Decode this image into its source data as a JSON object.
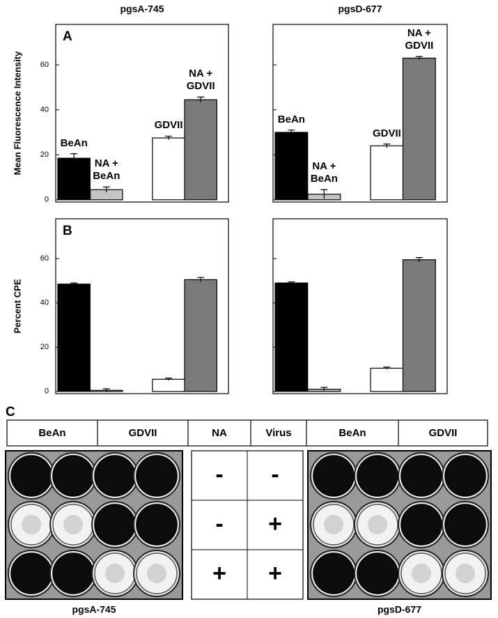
{
  "chart_data": [
    {
      "type": "bar",
      "title": "pgsA-745",
      "panel": "A",
      "y_label": "Mean Fluorescence Intensity",
      "categories": [
        "BeAn",
        "NA + BeAn",
        "GDVII",
        "NA + GDVII"
      ],
      "values": [
        18.5,
        4.5,
        27.5,
        44.5
      ],
      "errors": [
        2,
        1.2,
        0.8,
        1.2
      ],
      "colors": [
        "#000000",
        "#c4c4c4",
        "#ffffff",
        "#7a7a7a"
      ],
      "ylim": [
        -1,
        78
      ],
      "yticks": [
        0,
        20,
        40,
        60
      ],
      "tick_labels": true
    },
    {
      "type": "bar",
      "title": "pgsD-677",
      "categories": [
        "BeAn",
        "NA + BeAn",
        "GDVII",
        "NA + GDVII"
      ],
      "values": [
        30,
        2.5,
        24,
        63
      ],
      "errors": [
        1,
        2,
        0.8,
        0.7
      ],
      "colors": [
        "#000000",
        "#c4c4c4",
        "#ffffff",
        "#7a7a7a"
      ],
      "ylim": [
        -1,
        78
      ],
      "yticks": [
        0,
        20,
        40,
        60
      ],
      "tick_labels": false
    },
    {
      "type": "bar",
      "panel": "B",
      "y_label": "Percent CPE",
      "categories": [
        null,
        null,
        null,
        null
      ],
      "values": [
        48.5,
        0.5,
        5.5,
        50.5
      ],
      "errors": [
        0.5,
        0.7,
        0.5,
        1
      ],
      "colors": [
        "#000000",
        "#c4c4c4",
        "#ffffff",
        "#7a7a7a"
      ],
      "ylim": [
        -1,
        78
      ],
      "yticks": [
        0,
        20,
        40,
        60
      ],
      "tick_labels": true
    },
    {
      "type": "bar",
      "categories": [
        null,
        null,
        null,
        null
      ],
      "values": [
        49,
        1,
        10.5,
        59.5
      ],
      "errors": [
        0.5,
        0.8,
        0.5,
        1
      ],
      "colors": [
        "#000000",
        "#c4c4c4",
        "#ffffff",
        "#7a7a7a"
      ],
      "ylim": [
        -1,
        78
      ],
      "yticks": [
        0,
        20,
        40,
        60
      ],
      "tick_labels": false
    }
  ],
  "panel_c": {
    "label": "C",
    "header": [
      "BeAn",
      "GDVII",
      "NA",
      "Virus",
      "BeAn",
      "GDVII"
    ],
    "signs": [
      [
        "-",
        "-"
      ],
      [
        "-",
        "+"
      ],
      [
        "+",
        "+"
      ]
    ],
    "plate_labels": [
      "pgsA-745",
      "pgsD-677"
    ]
  }
}
